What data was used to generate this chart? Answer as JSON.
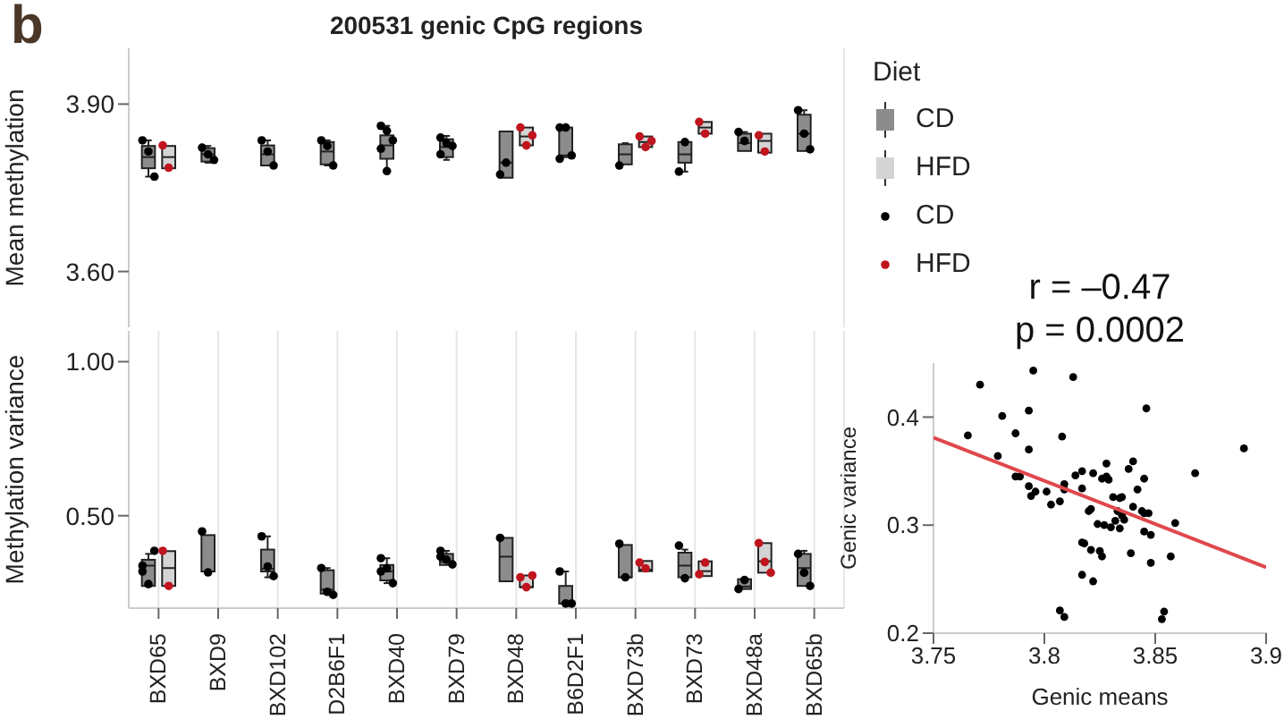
{
  "chart_data": [
    {
      "type": "box",
      "title": "200531 genic CpG regions",
      "ylabel": "Mean methylation",
      "legend_title": "Diet",
      "legend": "right",
      "grid": "x",
      "tick_labels": "y",
      "annotations": [
        "b"
      ],
      "categories": [
        "BXD65",
        "BXD9",
        "BXD102",
        "D2B6F1",
        "BXD40",
        "BXD79",
        "BXD48",
        "B6D2F1",
        "BXD73b",
        "BXD73",
        "BXD48a",
        "BXD65b"
      ],
      "ylim": [
        3.5,
        4.0
      ],
      "yticks": [
        {
          "value": 3.6,
          "label": "3.60"
        },
        {
          "value": 3.9,
          "label": "3.90"
        }
      ],
      "series": [
        {
          "name": "CD",
          "type": "box",
          "color": "#8c8c8c",
          "boxes": [
            {
              "low": 3.77,
              "q1": 3.785,
              "median": 3.805,
              "q3": 3.825,
              "high": 3.835
            },
            {
              "low": 3.795,
              "q1": 3.797,
              "median": 3.81,
              "q3": 3.821,
              "high": 3.825
            },
            {
              "low": 3.79,
              "q1": 3.79,
              "median": 3.81,
              "q3": 3.826,
              "high": 3.835
            },
            {
              "low": 3.79,
              "q1": 3.792,
              "median": 3.815,
              "q3": 3.832,
              "high": 3.835
            },
            {
              "low": 3.779,
              "q1": 3.802,
              "median": 3.826,
              "q3": 3.844,
              "high": 3.861
            },
            {
              "low": 3.8,
              "q1": 3.805,
              "median": 3.823,
              "q3": 3.837,
              "high": 3.843
            },
            {
              "low": 3.768,
              "q1": 3.768,
              "median": 3.795,
              "q3": 3.851,
              "high": 3.851
            },
            {
              "low": 3.805,
              "q1": 3.805,
              "median": 3.808,
              "q3": 3.858,
              "high": 3.858
            },
            {
              "low": 3.792,
              "q1": 3.792,
              "median": 3.81,
              "q3": 3.828,
              "high": 3.83
            },
            {
              "low": 3.779,
              "q1": 3.795,
              "median": 3.81,
              "q3": 3.832,
              "high": 3.832
            },
            {
              "low": 3.816,
              "q1": 3.816,
              "median": 3.83,
              "q3": 3.847,
              "high": 3.85
            },
            {
              "low": 3.816,
              "q1": 3.816,
              "median": 3.847,
              "q3": 3.881,
              "high": 3.889
            }
          ]
        },
        {
          "name": "HFD",
          "type": "box",
          "color": "#d4d4d4",
          "boxes": [
            {
              "low": 3.785,
              "q1": 3.785,
              "median": 3.805,
              "q3": 3.825,
              "high": 3.825
            },
            null,
            null,
            null,
            null,
            null,
            {
              "low": 3.826,
              "q1": 3.826,
              "median": 3.842,
              "q3": 3.858,
              "high": 3.858
            },
            null,
            {
              "low": 3.823,
              "q1": 3.823,
              "median": 3.832,
              "q3": 3.842,
              "high": 3.842
            },
            {
              "low": 3.847,
              "q1": 3.847,
              "median": 3.858,
              "q3": 3.868,
              "high": 3.868
            },
            {
              "low": 3.813,
              "q1": 3.813,
              "median": 3.834,
              "q3": 3.847,
              "high": 3.847
            },
            null
          ]
        },
        {
          "name": "CD",
          "type": "scatter",
          "color": "#000000",
          "x": [
            "BXD65",
            "BXD65",
            "BXD65",
            "BXD9",
            "BXD9",
            "BXD9",
            "BXD102",
            "BXD102",
            "BXD102",
            "D2B6F1",
            "D2B6F1",
            "D2B6F1",
            "BXD40",
            "BXD40",
            "BXD40",
            "BXD40",
            "BXD40",
            "BXD79",
            "BXD79",
            "BXD79",
            "BXD79",
            "BXD48",
            "BXD48",
            "B6D2F1",
            "B6D2F1",
            "B6D2F1",
            "B6D2F1",
            "BXD73b",
            "BXD73",
            "BXD73",
            "BXD48a",
            "BXD48a",
            "BXD65b",
            "BXD65b",
            "BXD65b"
          ],
          "values": [
            3.835,
            3.815,
            3.77,
            3.822,
            3.81,
            3.8,
            3.835,
            3.815,
            3.79,
            3.835,
            3.825,
            3.79,
            3.861,
            3.852,
            3.835,
            3.82,
            3.78,
            3.84,
            3.83,
            3.825,
            3.81,
            3.774,
            3.795,
            3.858,
            3.858,
            3.808,
            3.802,
            3.79,
            3.779,
            3.832,
            3.85,
            3.834,
            3.889,
            3.847,
            3.819
          ]
        },
        {
          "name": "HFD",
          "type": "scatter",
          "color": "#c0141e",
          "x": [
            "BXD65",
            "BXD65",
            "BXD48",
            "BXD48",
            "BXD48",
            "BXD73b",
            "BXD73b",
            "BXD73b",
            "BXD73",
            "BXD73",
            "BXD48a",
            "BXD48a"
          ],
          "values": [
            3.826,
            3.786,
            3.858,
            3.826,
            3.844,
            3.842,
            3.823,
            3.834,
            3.868,
            3.847,
            3.844,
            3.815
          ]
        }
      ]
    },
    {
      "type": "box",
      "ylabel": "Methylation variance",
      "grid": "x",
      "categories": [
        "BXD65",
        "BXD9",
        "BXD102",
        "D2B6F1",
        "BXD40",
        "BXD79",
        "BXD48",
        "B6D2F1",
        "BXD73b",
        "BXD73",
        "BXD48a",
        "BXD65b"
      ],
      "ylim": [
        0.2,
        1.1
      ],
      "yticks": [
        {
          "value": 0.5,
          "label": "0.50"
        },
        {
          "value": 1.0,
          "label": "1.00"
        }
      ],
      "series": [
        {
          "type": "box",
          "color": "#8c8c8c",
          "boxes": [
            {
              "low": 0.27,
              "q1": 0.272,
              "median": 0.338,
              "q3": 0.357,
              "high": 0.376
            },
            {
              "low": 0.319,
              "q1": 0.319,
              "median": 0.319,
              "q3": 0.437,
              "high": 0.437
            },
            {
              "low": 0.3,
              "q1": 0.319,
              "median": 0.328,
              "q3": 0.39,
              "high": 0.433
            },
            {
              "low": 0.247,
              "q1": 0.247,
              "median": 0.26,
              "q3": 0.323,
              "high": 0.33
            },
            {
              "low": 0.281,
              "q1": 0.29,
              "median": 0.319,
              "q3": 0.34,
              "high": 0.362
            },
            {
              "low": 0.34,
              "q1": 0.34,
              "median": 0.35,
              "q3": 0.376,
              "high": 0.386
            },
            {
              "low": 0.287,
              "q1": 0.287,
              "median": 0.367,
              "q3": 0.428,
              "high": 0.428
            },
            {
              "low": 0.215,
              "q1": 0.215,
              "median": 0.215,
              "q3": 0.272,
              "high": 0.319
            },
            {
              "low": 0.3,
              "q1": 0.3,
              "median": 0.3,
              "q3": 0.405,
              "high": 0.405
            },
            {
              "low": 0.3,
              "q1": 0.3,
              "median": 0.338,
              "q3": 0.38,
              "high": 0.39
            },
            {
              "low": 0.262,
              "q1": 0.262,
              "median": 0.27,
              "q3": 0.294,
              "high": 0.294
            },
            {
              "low": 0.272,
              "q1": 0.272,
              "median": 0.33,
              "q3": 0.376,
              "high": 0.386
            }
          ]
        },
        {
          "type": "box",
          "color": "#d4d4d4",
          "boxes": [
            {
              "low": 0.272,
              "q1": 0.272,
              "median": 0.33,
              "q3": 0.385,
              "high": 0.385
            },
            null,
            null,
            null,
            null,
            null,
            {
              "low": 0.268,
              "q1": 0.268,
              "median": 0.268,
              "q3": 0.306,
              "high": 0.306
            },
            null,
            {
              "low": 0.32,
              "q1": 0.32,
              "median": 0.325,
              "q3": 0.353,
              "high": 0.353
            },
            {
              "low": 0.304,
              "q1": 0.304,
              "median": 0.32,
              "q3": 0.352,
              "high": 0.352
            },
            {
              "low": 0.315,
              "q1": 0.315,
              "median": 0.352,
              "q3": 0.411,
              "high": 0.411
            },
            null
          ]
        },
        {
          "type": "scatter",
          "color": "#000000",
          "x": [
            "BXD65",
            "BXD65",
            "BXD65",
            "BXD65",
            "BXD9",
            "BXD9",
            "BXD102",
            "BXD102",
            "BXD102",
            "D2B6F1",
            "D2B6F1",
            "D2B6F1",
            "BXD40",
            "BXD40",
            "BXD40",
            "BXD40",
            "BXD79",
            "BXD79",
            "BXD79",
            "BXD79",
            "BXD48",
            "B6D2F1",
            "B6D2F1",
            "B6D2F1",
            "BXD73b",
            "BXD73b",
            "BXD73",
            "BXD73",
            "BXD48a",
            "BXD48a",
            "BXD65b",
            "BXD65b",
            "BXD65b"
          ],
          "values": [
            0.319,
            0.278,
            0.386,
            0.338,
            0.449,
            0.316,
            0.433,
            0.335,
            0.304,
            0.33,
            0.253,
            0.243,
            0.362,
            0.329,
            0.281,
            0.319,
            0.386,
            0.357,
            0.342,
            0.367,
            0.428,
            0.319,
            0.215,
            0.215,
            0.409,
            0.3,
            0.403,
            0.297,
            0.262,
            0.291,
            0.376,
            0.315,
            0.272
          ]
        },
        {
          "type": "scatter",
          "color": "#c0141e",
          "x": [
            "BXD65",
            "BXD65",
            "BXD48",
            "BXD48",
            "BXD48",
            "BXD73b",
            "BXD73b",
            "BXD73",
            "BXD73",
            "BXD48a",
            "BXD48a",
            "BXD48a"
          ],
          "values": [
            0.386,
            0.272,
            0.3,
            0.268,
            0.306,
            0.348,
            0.329,
            0.31,
            0.348,
            0.411,
            0.35,
            0.315
          ]
        }
      ]
    },
    {
      "type": "scatter",
      "xlabel": "Genic means",
      "ylabel": "Genic variance",
      "annotations": [
        "r = –0.47",
        "p = 0.0002"
      ],
      "xlim": [
        3.75,
        3.9
      ],
      "xticks": [
        3.75,
        3.8,
        3.85,
        3.9
      ],
      "ylim": [
        0.2,
        0.45
      ],
      "yticks": [
        0.2,
        0.3,
        0.4
      ],
      "series": [
        {
          "type": "scatter",
          "color": "#000000",
          "x": [
            3.7655,
            3.771,
            3.781,
            3.779,
            3.787,
            3.787,
            3.789,
            3.793,
            3.793,
            3.793,
            3.794,
            3.796,
            3.795,
            3.801,
            3.803,
            3.807,
            3.808,
            3.809,
            3.809,
            3.813,
            3.814,
            3.817,
            3.817,
            3.807,
            3.809,
            3.817,
            3.818,
            3.817,
            3.82,
            3.821,
            3.821,
            3.822,
            3.822,
            3.824,
            3.825,
            3.826,
            3.826,
            3.827,
            3.828,
            3.828,
            3.829,
            3.83,
            3.831,
            3.832,
            3.833,
            3.834,
            3.834,
            3.835,
            3.835,
            3.836,
            3.838,
            3.839,
            3.84,
            3.84,
            3.842,
            3.844,
            3.845,
            3.845,
            3.845,
            3.846,
            3.847,
            3.848,
            3.848,
            3.853,
            3.854,
            3.857,
            3.859,
            3.868,
            3.89
          ],
          "values": [
            0.383,
            0.43,
            0.401,
            0.364,
            0.385,
            0.345,
            0.345,
            0.406,
            0.37,
            0.336,
            0.327,
            0.331,
            0.443,
            0.331,
            0.319,
            0.322,
            0.382,
            0.338,
            0.333,
            0.437,
            0.346,
            0.35,
            0.334,
            0.221,
            0.215,
            0.254,
            0.283,
            0.284,
            0.313,
            0.315,
            0.277,
            0.348,
            0.248,
            0.301,
            0.276,
            0.271,
            0.343,
            0.3,
            0.345,
            0.357,
            0.342,
            0.298,
            0.326,
            0.304,
            0.313,
            0.297,
            0.325,
            0.326,
            0.309,
            0.305,
            0.352,
            0.274,
            0.317,
            0.359,
            0.333,
            0.313,
            0.294,
            0.311,
            0.343,
            0.408,
            0.311,
            0.291,
            0.265,
            0.213,
            0.22,
            0.271,
            0.302,
            0.348,
            0.371
          ]
        },
        {
          "type": "line",
          "color": "#e0474c",
          "x": [
            3.75,
            3.9
          ],
          "values": [
            0.381,
            0.261
          ]
        }
      ]
    }
  ]
}
